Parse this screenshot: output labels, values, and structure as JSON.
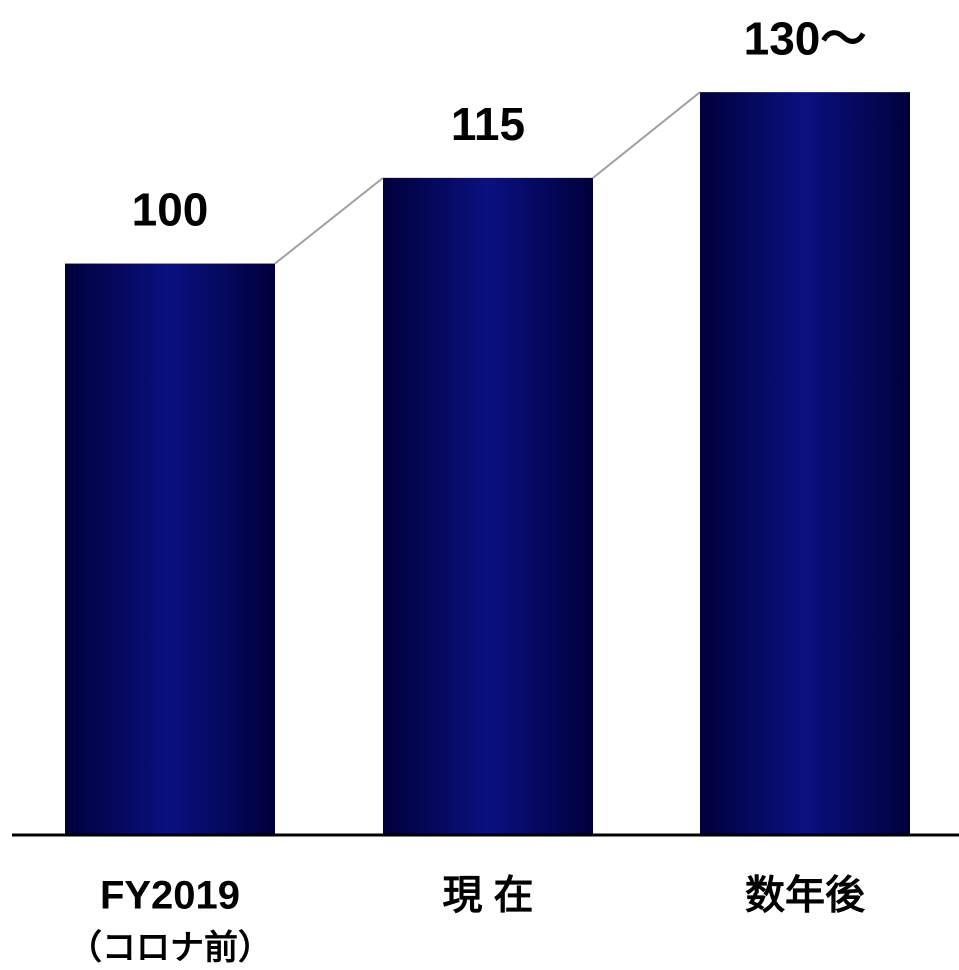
{
  "chart_data": {
    "type": "bar",
    "categories": [
      "FY2019",
      "現 在",
      "数年後"
    ],
    "annotations": [
      "（コロナ前）"
    ],
    "values": [
      100,
      115,
      130
    ],
    "value_labels": [
      "100",
      "115",
      "130〜"
    ],
    "color": "#0a1080",
    "ylim": [
      0,
      140
    ]
  }
}
